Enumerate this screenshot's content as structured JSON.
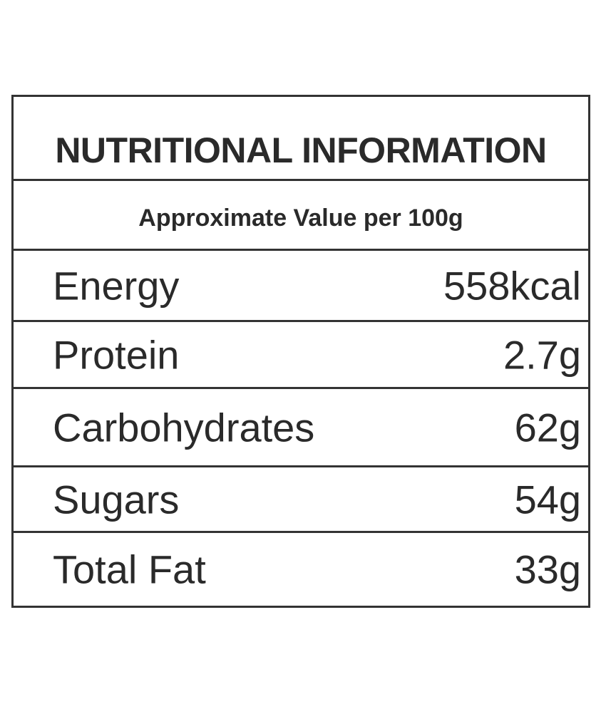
{
  "header": {
    "title": "NUTRITIONAL INFORMATION",
    "subtitle": "Approximate Value per 100g"
  },
  "table": {
    "rows": [
      [
        "Energy",
        "558kcal"
      ],
      [
        "Protein",
        "2.7g"
      ],
      [
        "Carbohydrates",
        "62g"
      ],
      [
        "Sugars",
        "54g"
      ],
      [
        "Total Fat",
        "33g"
      ]
    ]
  }
}
